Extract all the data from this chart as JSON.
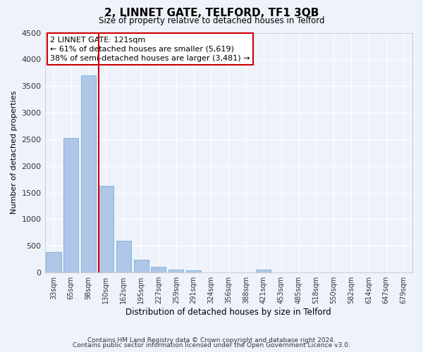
{
  "title": "2, LINNET GATE, TELFORD, TF1 3QB",
  "subtitle": "Size of property relative to detached houses in Telford",
  "xlabel": "Distribution of detached houses by size in Telford",
  "ylabel": "Number of detached properties",
  "categories": [
    "33sqm",
    "65sqm",
    "98sqm",
    "130sqm",
    "162sqm",
    "195sqm",
    "227sqm",
    "259sqm",
    "291sqm",
    "324sqm",
    "356sqm",
    "388sqm",
    "421sqm",
    "453sqm",
    "485sqm",
    "518sqm",
    "550sqm",
    "582sqm",
    "614sqm",
    "647sqm",
    "679sqm"
  ],
  "values": [
    380,
    2520,
    3700,
    1630,
    600,
    240,
    105,
    55,
    45,
    0,
    0,
    0,
    50,
    0,
    0,
    0,
    0,
    0,
    0,
    0,
    0
  ],
  "bar_color": "#aec6e8",
  "bar_edge_color": "#7bafd4",
  "vline_color": "#cc0000",
  "annotation_title": "2 LINNET GATE: 121sqm",
  "annotation_line1": "← 61% of detached houses are smaller (5,619)",
  "annotation_line2": "38% of semi-detached houses are larger (3,481) →",
  "annotation_box_color": "#ffffff",
  "annotation_box_edge": "#cc0000",
  "ylim": [
    0,
    4500
  ],
  "yticks": [
    0,
    500,
    1000,
    1500,
    2000,
    2500,
    3000,
    3500,
    4000,
    4500
  ],
  "background_color": "#eef2fa",
  "grid_color": "#ffffff",
  "footer_line1": "Contains HM Land Registry data © Crown copyright and database right 2024.",
  "footer_line2": "Contains public sector information licensed under the Open Government Licence v3.0."
}
